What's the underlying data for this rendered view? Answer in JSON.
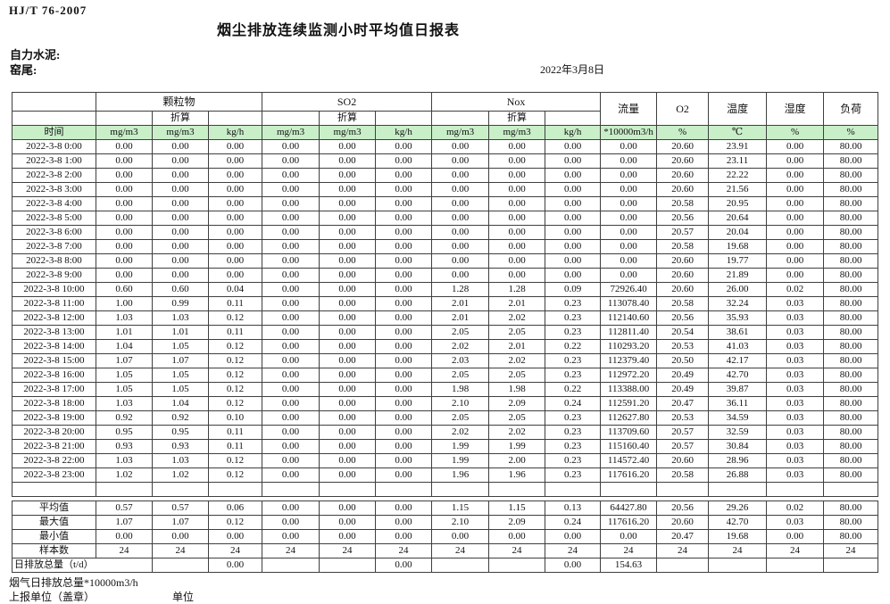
{
  "page": {
    "doc_code": "HJ/T  76-2007",
    "title": "烟尘排放连续监测小时平均值日报表",
    "company": "自力水泥:",
    "location": "窑尾:",
    "date": "2022年3月8日"
  },
  "table": {
    "time_label": "时间",
    "converted_label": "折算",
    "groups": {
      "pm": "颗粒物",
      "so2": "SO2",
      "nox": "Nox",
      "flow": "流量",
      "o2": "O2",
      "temp": "温度",
      "humidity": "湿度",
      "load": "负荷"
    },
    "units": [
      "mg/m3",
      "mg/m3",
      "kg/h",
      "mg/m3",
      "mg/m3",
      "kg/h",
      "mg/m3",
      "mg/m3",
      "kg/h",
      "*10000m3/h",
      "%",
      "℃",
      "%",
      "%"
    ],
    "rows": [
      {
        "time": "2022-3-8 0:00",
        "values": [
          "0.00",
          "0.00",
          "0.00",
          "0.00",
          "0.00",
          "0.00",
          "0.00",
          "0.00",
          "0.00",
          "0.00",
          "20.60",
          "23.91",
          "0.00",
          "80.00"
        ]
      },
      {
        "time": "2022-3-8 1:00",
        "values": [
          "0.00",
          "0.00",
          "0.00",
          "0.00",
          "0.00",
          "0.00",
          "0.00",
          "0.00",
          "0.00",
          "0.00",
          "20.60",
          "23.11",
          "0.00",
          "80.00"
        ]
      },
      {
        "time": "2022-3-8 2:00",
        "values": [
          "0.00",
          "0.00",
          "0.00",
          "0.00",
          "0.00",
          "0.00",
          "0.00",
          "0.00",
          "0.00",
          "0.00",
          "20.60",
          "22.22",
          "0.00",
          "80.00"
        ]
      },
      {
        "time": "2022-3-8 3:00",
        "values": [
          "0.00",
          "0.00",
          "0.00",
          "0.00",
          "0.00",
          "0.00",
          "0.00",
          "0.00",
          "0.00",
          "0.00",
          "20.60",
          "21.56",
          "0.00",
          "80.00"
        ]
      },
      {
        "time": "2022-3-8 4:00",
        "values": [
          "0.00",
          "0.00",
          "0.00",
          "0.00",
          "0.00",
          "0.00",
          "0.00",
          "0.00",
          "0.00",
          "0.00",
          "20.58",
          "20.95",
          "0.00",
          "80.00"
        ]
      },
      {
        "time": "2022-3-8 5:00",
        "values": [
          "0.00",
          "0.00",
          "0.00",
          "0.00",
          "0.00",
          "0.00",
          "0.00",
          "0.00",
          "0.00",
          "0.00",
          "20.56",
          "20.64",
          "0.00",
          "80.00"
        ]
      },
      {
        "time": "2022-3-8 6:00",
        "values": [
          "0.00",
          "0.00",
          "0.00",
          "0.00",
          "0.00",
          "0.00",
          "0.00",
          "0.00",
          "0.00",
          "0.00",
          "20.57",
          "20.04",
          "0.00",
          "80.00"
        ]
      },
      {
        "time": "2022-3-8 7:00",
        "values": [
          "0.00",
          "0.00",
          "0.00",
          "0.00",
          "0.00",
          "0.00",
          "0.00",
          "0.00",
          "0.00",
          "0.00",
          "20.58",
          "19.68",
          "0.00",
          "80.00"
        ]
      },
      {
        "time": "2022-3-8 8:00",
        "values": [
          "0.00",
          "0.00",
          "0.00",
          "0.00",
          "0.00",
          "0.00",
          "0.00",
          "0.00",
          "0.00",
          "0.00",
          "20.60",
          "19.77",
          "0.00",
          "80.00"
        ]
      },
      {
        "time": "2022-3-8 9:00",
        "values": [
          "0.00",
          "0.00",
          "0.00",
          "0.00",
          "0.00",
          "0.00",
          "0.00",
          "0.00",
          "0.00",
          "0.00",
          "20.60",
          "21.89",
          "0.00",
          "80.00"
        ]
      },
      {
        "time": "2022-3-8 10:00",
        "values": [
          "0.60",
          "0.60",
          "0.04",
          "0.00",
          "0.00",
          "0.00",
          "1.28",
          "1.28",
          "0.09",
          "72926.40",
          "20.60",
          "26.00",
          "0.02",
          "80.00"
        ]
      },
      {
        "time": "2022-3-8 11:00",
        "values": [
          "1.00",
          "0.99",
          "0.11",
          "0.00",
          "0.00",
          "0.00",
          "2.01",
          "2.01",
          "0.23",
          "113078.40",
          "20.58",
          "32.24",
          "0.03",
          "80.00"
        ]
      },
      {
        "time": "2022-3-8 12:00",
        "values": [
          "1.03",
          "1.03",
          "0.12",
          "0.00",
          "0.00",
          "0.00",
          "2.01",
          "2.02",
          "0.23",
          "112140.60",
          "20.56",
          "35.93",
          "0.03",
          "80.00"
        ]
      },
      {
        "time": "2022-3-8 13:00",
        "values": [
          "1.01",
          "1.01",
          "0.11",
          "0.00",
          "0.00",
          "0.00",
          "2.05",
          "2.05",
          "0.23",
          "112811.40",
          "20.54",
          "38.61",
          "0.03",
          "80.00"
        ]
      },
      {
        "time": "2022-3-8 14:00",
        "values": [
          "1.04",
          "1.05",
          "0.12",
          "0.00",
          "0.00",
          "0.00",
          "2.02",
          "2.01",
          "0.22",
          "110293.20",
          "20.53",
          "41.03",
          "0.03",
          "80.00"
        ]
      },
      {
        "time": "2022-3-8 15:00",
        "values": [
          "1.07",
          "1.07",
          "0.12",
          "0.00",
          "0.00",
          "0.00",
          "2.03",
          "2.02",
          "0.23",
          "112379.40",
          "20.50",
          "42.17",
          "0.03",
          "80.00"
        ]
      },
      {
        "time": "2022-3-8 16:00",
        "values": [
          "1.05",
          "1.05",
          "0.12",
          "0.00",
          "0.00",
          "0.00",
          "2.05",
          "2.05",
          "0.23",
          "112972.20",
          "20.49",
          "42.70",
          "0.03",
          "80.00"
        ]
      },
      {
        "time": "2022-3-8 17:00",
        "values": [
          "1.05",
          "1.05",
          "0.12",
          "0.00",
          "0.00",
          "0.00",
          "1.98",
          "1.98",
          "0.22",
          "113388.00",
          "20.49",
          "39.87",
          "0.03",
          "80.00"
        ]
      },
      {
        "time": "2022-3-8 18:00",
        "values": [
          "1.03",
          "1.04",
          "0.12",
          "0.00",
          "0.00",
          "0.00",
          "2.10",
          "2.09",
          "0.24",
          "112591.20",
          "20.47",
          "36.11",
          "0.03",
          "80.00"
        ]
      },
      {
        "time": "2022-3-8 19:00",
        "values": [
          "0.92",
          "0.92",
          "0.10",
          "0.00",
          "0.00",
          "0.00",
          "2.05",
          "2.05",
          "0.23",
          "112627.80",
          "20.53",
          "34.59",
          "0.03",
          "80.00"
        ]
      },
      {
        "time": "2022-3-8 20:00",
        "values": [
          "0.95",
          "0.95",
          "0.11",
          "0.00",
          "0.00",
          "0.00",
          "2.02",
          "2.02",
          "0.23",
          "113709.60",
          "20.57",
          "32.59",
          "0.03",
          "80.00"
        ]
      },
      {
        "time": "2022-3-8 21:00",
        "values": [
          "0.93",
          "0.93",
          "0.11",
          "0.00",
          "0.00",
          "0.00",
          "1.99",
          "1.99",
          "0.23",
          "115160.40",
          "20.57",
          "30.84",
          "0.03",
          "80.00"
        ]
      },
      {
        "time": "2022-3-8 22:00",
        "values": [
          "1.03",
          "1.03",
          "0.12",
          "0.00",
          "0.00",
          "0.00",
          "1.99",
          "2.00",
          "0.23",
          "114572.40",
          "20.60",
          "28.96",
          "0.03",
          "80.00"
        ]
      },
      {
        "time": "2022-3-8 23:00",
        "values": [
          "1.02",
          "1.02",
          "0.12",
          "0.00",
          "0.00",
          "0.00",
          "1.96",
          "1.96",
          "0.23",
          "117616.20",
          "20.58",
          "26.88",
          "0.03",
          "80.00"
        ]
      }
    ],
    "summary": [
      {
        "label": "平均值",
        "values": [
          "0.57",
          "0.57",
          "0.06",
          "0.00",
          "0.00",
          "0.00",
          "1.15",
          "1.15",
          "0.13",
          "64427.80",
          "20.56",
          "29.26",
          "0.02",
          "80.00"
        ]
      },
      {
        "label": "最大值",
        "values": [
          "1.07",
          "1.07",
          "0.12",
          "0.00",
          "0.00",
          "0.00",
          "2.10",
          "2.09",
          "0.24",
          "117616.20",
          "20.60",
          "42.70",
          "0.03",
          "80.00"
        ]
      },
      {
        "label": "最小值",
        "values": [
          "0.00",
          "0.00",
          "0.00",
          "0.00",
          "0.00",
          "0.00",
          "0.00",
          "0.00",
          "0.00",
          "0.00",
          "20.47",
          "19.68",
          "0.00",
          "80.00"
        ]
      },
      {
        "label": "样本数",
        "values": [
          "24",
          "24",
          "24",
          "24",
          "24",
          "24",
          "24",
          "24",
          "24",
          "24",
          "24",
          "24",
          "24",
          "24"
        ]
      }
    ],
    "daily_total": {
      "label": "日排放总量（t/d）",
      "cells": [
        "",
        "0.00",
        "",
        "",
        "0.00",
        "",
        "",
        "0.00",
        "154.63",
        "",
        "",
        "",
        ""
      ]
    }
  },
  "footer": {
    "flue_total": "烟气日排放总量*10000m3/h",
    "report_unit": "上报单位（盖章）",
    "unit_label": "单位"
  },
  "colors": {
    "header_green": "#c9efc9",
    "border": "#3f3f3f"
  }
}
